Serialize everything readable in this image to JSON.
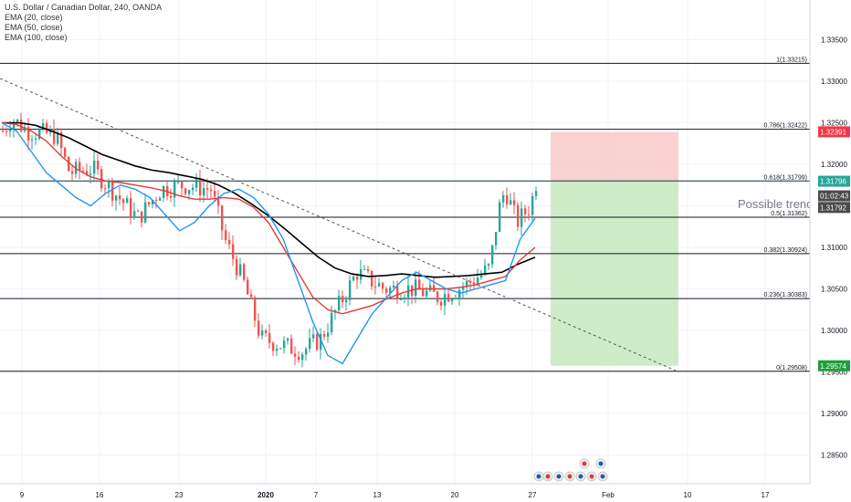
{
  "header": {
    "title": "U.S. Dollar / Canadian Dollar, 240, OANDA",
    "indicators": [
      "EMA (20, close)",
      "EMA (50, close)",
      "EMA (100, close)"
    ]
  },
  "annotation_text": "Possible trend",
  "colors": {
    "ema20": "#2196f3",
    "ema50": "#e53935",
    "ema100": "#000000",
    "up": "#26a69a",
    "down": "#ef5350",
    "stop_zone": "#f8c9c9",
    "target_zone": "#c7e9c0",
    "price_badge": "#26a69a",
    "stop_badge": "#f23645",
    "target_badge": "#1e9e3a"
  },
  "chart_data": {
    "type": "candlestick",
    "title": "U.S. Dollar / Canadian Dollar, 240, OANDA",
    "x_tick_labels": [
      "9",
      "16",
      "23",
      "2020",
      "7",
      "13",
      "20",
      "27",
      "Feb",
      "10",
      "17"
    ],
    "y_tick_labels": [
      "1.33500",
      "1.33000",
      "1.32500",
      "1.32000",
      "1.31500",
      "1.31000",
      "1.30500",
      "1.30000",
      "1.29500",
      "1.29000",
      "1.28500"
    ],
    "ylim": [
      1.28,
      1.34
    ],
    "fib_levels": [
      {
        "label": "1(1.33215)",
        "value": 1.33215
      },
      {
        "label": "0.786(1.32422)",
        "value": 1.32422
      },
      {
        "label": "0.618(1.31799)",
        "value": 1.31799
      },
      {
        "label": "0.5(1.31362)",
        "value": 1.31362
      },
      {
        "label": "0.382(1.30924)",
        "value": 1.30924
      },
      {
        "label": "0.236(1.30383)",
        "value": 1.30383
      },
      {
        "label": "0(1.29508)",
        "value": 1.29508
      }
    ],
    "price_badges": [
      {
        "label": "1.32391",
        "value": 1.32391,
        "kind": "stop"
      },
      {
        "label": "1.31796",
        "value": 1.31796,
        "kind": "price"
      },
      {
        "label": "01:02:43",
        "value": 1.3162,
        "kind": "timer"
      },
      {
        "label": "1.31792",
        "value": 1.3148,
        "kind": "last"
      },
      {
        "label": "1.29574",
        "value": 1.29574,
        "kind": "target"
      }
    ],
    "position": {
      "entry": 1.31796,
      "stop": 1.32391,
      "target": 1.29574
    },
    "ema20_series": [
      1.325,
      1.324,
      1.3215,
      1.319,
      1.3175,
      1.316,
      1.315,
      1.3165,
      1.3175,
      1.317,
      1.316,
      1.314,
      1.312,
      1.313,
      1.315,
      1.3165,
      1.317,
      1.316,
      1.314,
      1.311,
      1.306,
      1.301,
      1.297,
      1.296,
      1.299,
      1.302,
      1.304,
      1.306,
      1.307,
      1.306,
      1.305,
      1.3045,
      1.305,
      1.3055,
      1.306,
      1.311,
      1.3135
    ],
    "ema50_series": [
      1.325,
      1.3248,
      1.324,
      1.3228,
      1.321,
      1.3195,
      1.3185,
      1.318,
      1.3178,
      1.3175,
      1.3172,
      1.3168,
      1.3162,
      1.3158,
      1.3158,
      1.316,
      1.3158,
      1.3148,
      1.313,
      1.31,
      1.307,
      1.304,
      1.3025,
      1.302,
      1.3025,
      1.303,
      1.3038,
      1.3045,
      1.305,
      1.305,
      1.305,
      1.3052,
      1.3055,
      1.306,
      1.3065,
      1.3085,
      1.31
    ],
    "ema100_series": [
      1.325,
      1.325,
      1.3247,
      1.324,
      1.3232,
      1.3222,
      1.3212,
      1.3205,
      1.3198,
      1.3193,
      1.319,
      1.3186,
      1.3182,
      1.3175,
      1.3165,
      1.3152,
      1.3138,
      1.3122,
      1.3105,
      1.3088,
      1.3075,
      1.3068,
      1.3065,
      1.3066,
      1.3068,
      1.3066,
      1.3064,
      1.3065,
      1.3066,
      1.3068,
      1.307,
      1.308,
      1.3088
    ]
  }
}
